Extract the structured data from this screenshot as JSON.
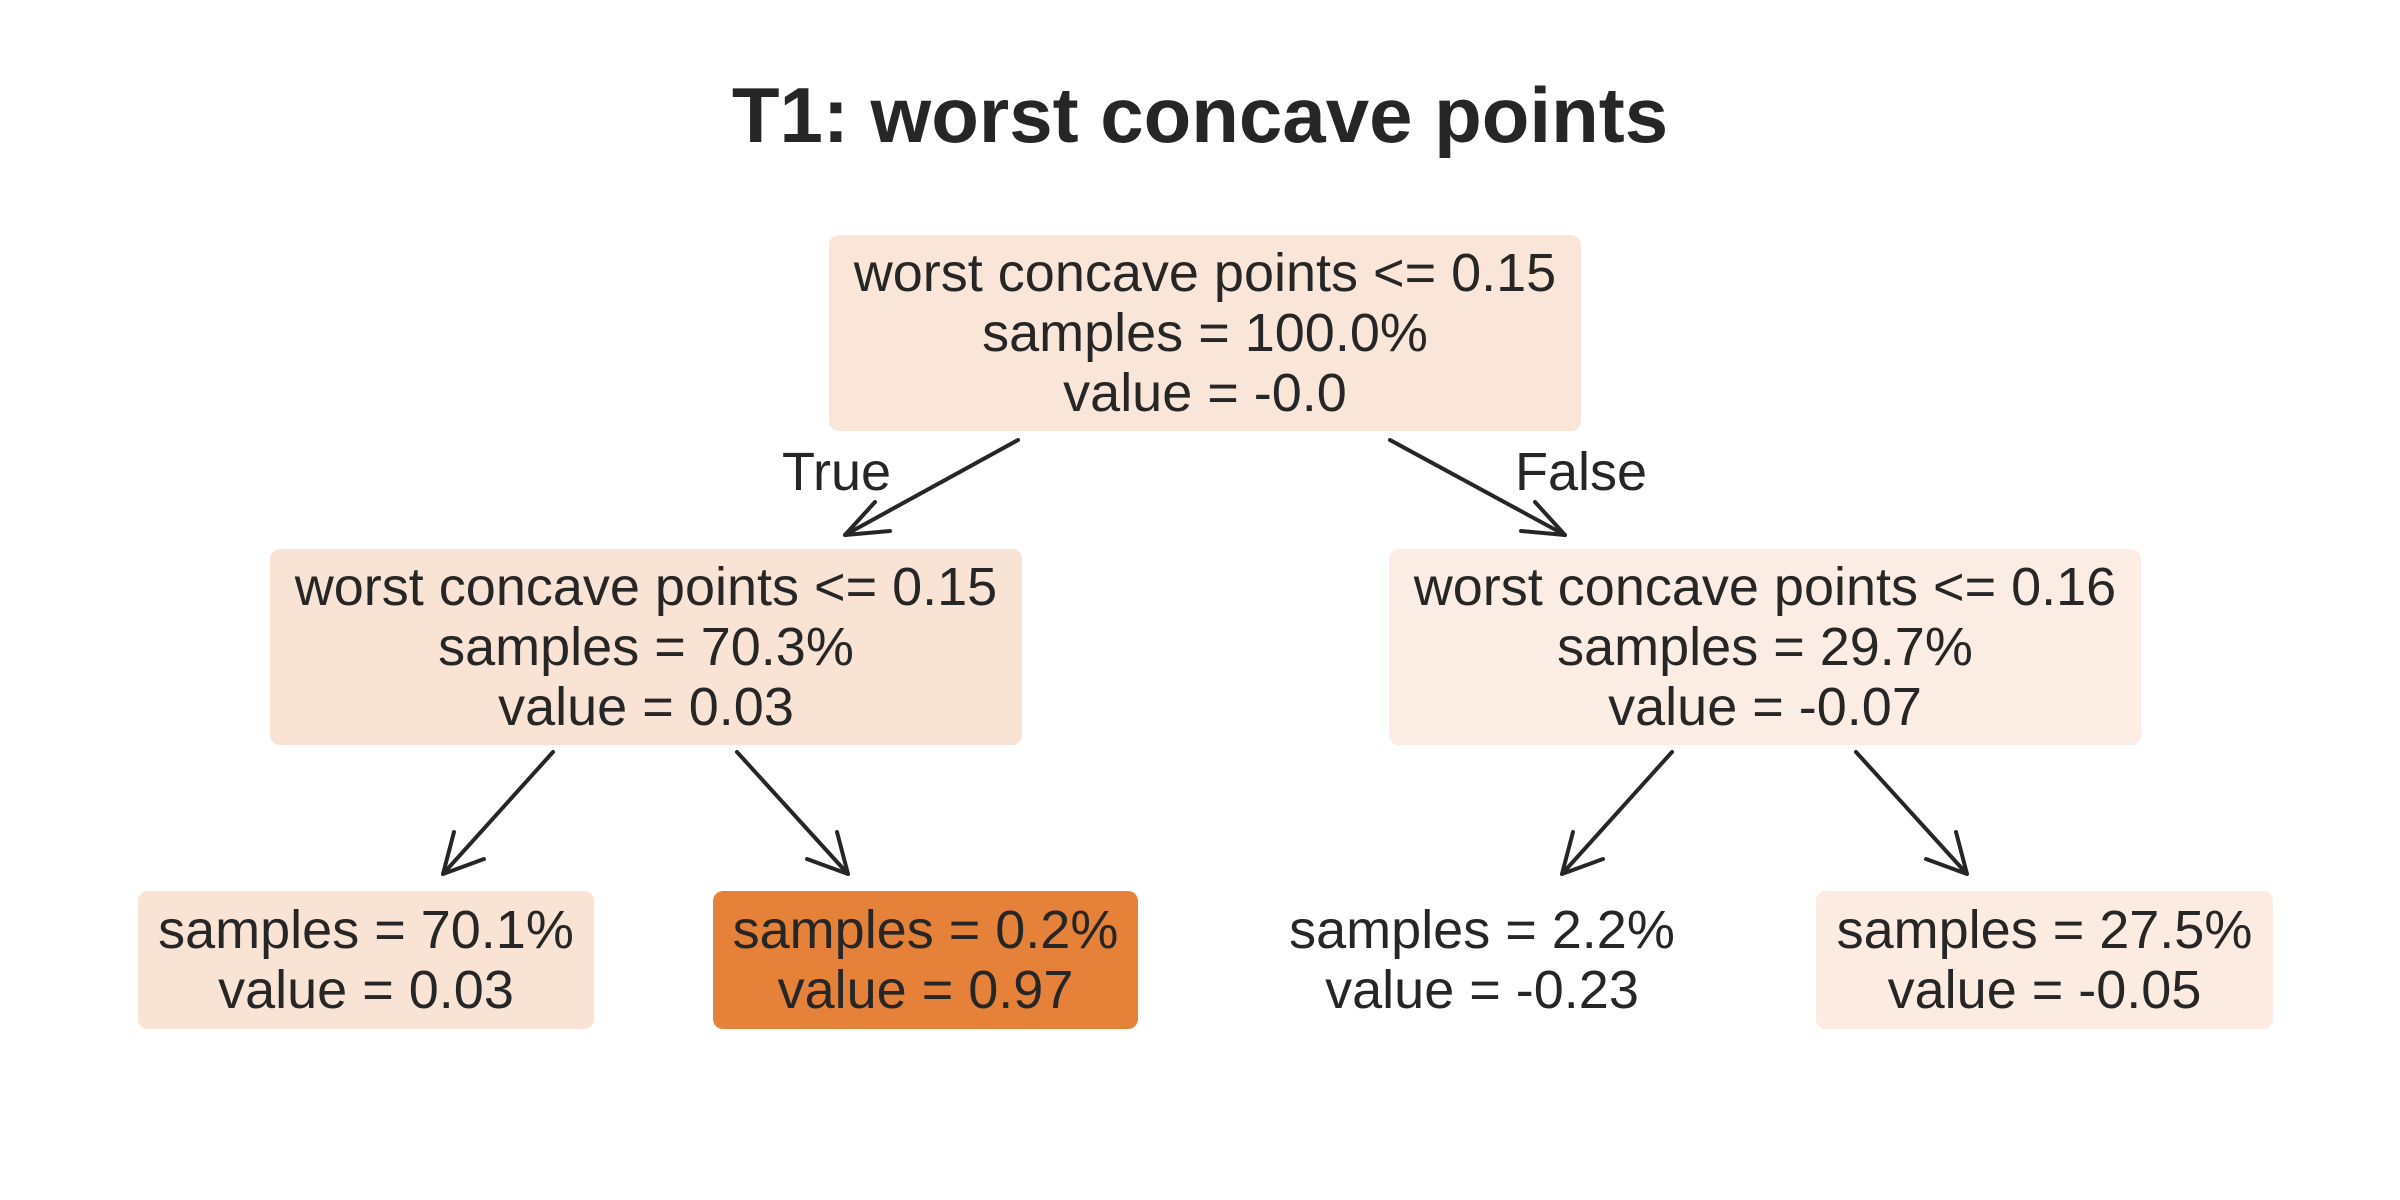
{
  "title": "T1: worst concave points",
  "colors": {
    "text": "#262626",
    "arrow": "#262626",
    "leaf_high": "#e58139"
  },
  "edge_labels": {
    "true": "True",
    "false": "False"
  },
  "tree": {
    "root": {
      "split": "worst concave points <= 0.15",
      "samples": "samples = 100.0%",
      "value": "value = -0.0",
      "fill": "#fae6d9"
    },
    "left": {
      "split": "worst concave points <= 0.15",
      "samples": "samples = 70.3%",
      "value": "value = 0.03",
      "fill": "#f9e3d4"
    },
    "right": {
      "split": "worst concave points <= 0.16",
      "samples": "samples = 29.7%",
      "value": "value = -0.07",
      "fill": "#fbede4"
    },
    "leaf_ll": {
      "samples": "samples = 70.1%",
      "value": "value = 0.03",
      "fill": "#f9e3d4"
    },
    "leaf_lr": {
      "samples": "samples = 0.2%",
      "value": "value = 0.97",
      "fill": "#e58139"
    },
    "leaf_rl": {
      "samples": "samples = 2.2%",
      "value": "value = -0.23",
      "fill": "#ffffff"
    },
    "leaf_rr": {
      "samples": "samples = 27.5%",
      "value": "value = -0.05",
      "fill": "#fbebe0"
    }
  }
}
